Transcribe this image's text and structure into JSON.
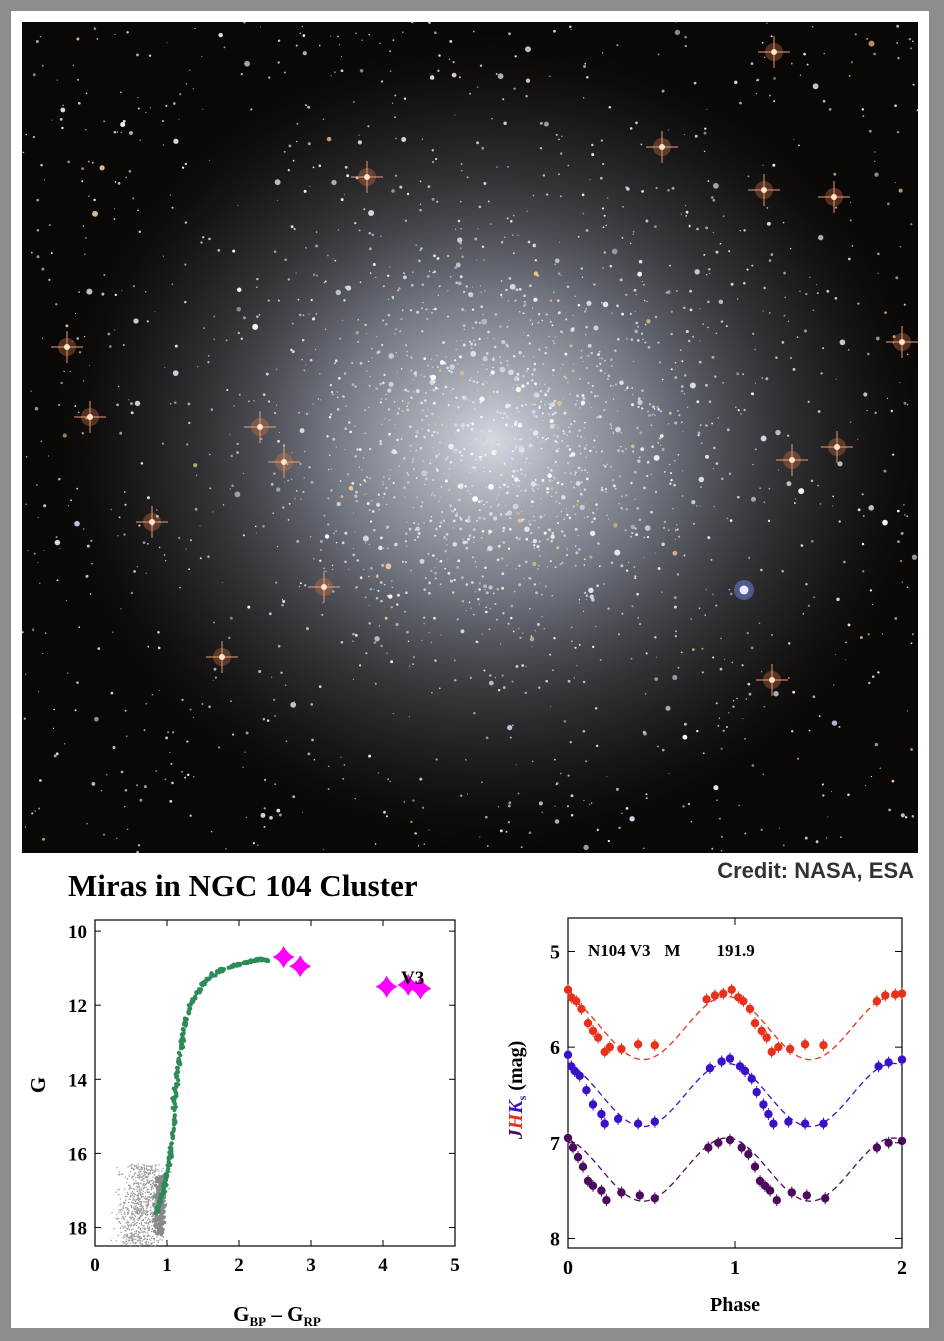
{
  "page": {
    "title": "Miras in NGC 104 Cluster",
    "credit": "Credit: NASA, ESA"
  },
  "colors": {
    "frame": "#8c8c8c",
    "cmd_members": "#2e8b57",
    "cmd_field": "#9a9a9a",
    "mira_marker": "#ff00ff",
    "J_band": "#e8301c",
    "H_band": "#3a10c8",
    "K_band": "#4b0a5e",
    "photo_background": "#0a0806"
  },
  "photo": {
    "icon": "globular-cluster-photo"
  },
  "chart_data": [
    {
      "type": "scatter",
      "xlabel_main": "G",
      "xlabel_sub1": "BP",
      "xlabel_sep": " – G",
      "xlabel_sub2": "RP",
      "ylabel": "G",
      "xlim": [
        0,
        5
      ],
      "ylim": [
        18.5,
        9.7
      ],
      "y_inverted": true,
      "xticks": [
        "0",
        "1",
        "2",
        "3",
        "4",
        "5"
      ],
      "yticks": [
        "10",
        "12",
        "14",
        "16",
        "18"
      ],
      "annotation": "V3",
      "series": [
        {
          "marker": "dot",
          "points": [
            [
              0.85,
              17.6
            ],
            [
              0.9,
              17.3
            ],
            [
              0.95,
              17.0
            ],
            [
              1.0,
              16.6
            ],
            [
              1.05,
              16.0
            ],
            [
              1.1,
              15.2
            ],
            [
              1.1,
              14.5
            ],
            [
              1.15,
              13.8
            ],
            [
              1.2,
              13.1
            ],
            [
              1.25,
              12.5
            ],
            [
              1.35,
              11.9
            ],
            [
              1.5,
              11.4
            ],
            [
              1.7,
              11.1
            ],
            [
              1.9,
              10.95
            ],
            [
              2.1,
              10.85
            ],
            [
              2.3,
              10.75
            ],
            [
              2.4,
              10.8
            ]
          ]
        },
        {
          "marker": "star",
          "points": [
            [
              2.62,
              10.7
            ],
            [
              2.85,
              10.95
            ],
            [
              4.05,
              11.5
            ],
            [
              4.35,
              11.45
            ],
            [
              4.52,
              11.55
            ]
          ]
        }
      ]
    },
    {
      "type": "scatter",
      "label_name": "N104 V3",
      "label_class": "M",
      "label_period": "191.9",
      "xlabel": "Phase",
      "ylabel_J": "J",
      "ylabel_H": "H",
      "ylabel_K": "K",
      "ylabel_sub": "s",
      "ylabel_unit": " (mag)",
      "xlim": [
        0,
        2
      ],
      "ylim": [
        8.1,
        4.65
      ],
      "y_inverted": true,
      "xticks": [
        "0",
        "1",
        "2"
      ],
      "yticks": [
        "5",
        "6",
        "7",
        "8"
      ],
      "series": [
        {
          "band": "J",
          "mean": 5.8,
          "amplitude": 0.33,
          "points": [
            [
              0.0,
              5.4
            ],
            [
              0.02,
              5.48
            ],
            [
              0.05,
              5.52
            ],
            [
              0.08,
              5.6
            ],
            [
              0.12,
              5.75
            ],
            [
              0.15,
              5.83
            ],
            [
              0.18,
              5.9
            ],
            [
              0.22,
              6.05
            ],
            [
              0.25,
              6.0
            ],
            [
              0.32,
              6.02
            ],
            [
              0.42,
              5.97
            ],
            [
              0.52,
              5.98
            ],
            [
              0.83,
              5.5
            ],
            [
              0.88,
              5.46
            ],
            [
              0.93,
              5.44
            ],
            [
              0.98,
              5.4
            ],
            [
              1.02,
              5.48
            ],
            [
              1.05,
              5.52
            ],
            [
              1.09,
              5.6
            ],
            [
              1.12,
              5.75
            ],
            [
              1.16,
              5.83
            ],
            [
              1.19,
              5.9
            ],
            [
              1.22,
              6.05
            ],
            [
              1.26,
              6.0
            ],
            [
              1.33,
              6.02
            ],
            [
              1.42,
              5.97
            ],
            [
              1.53,
              5.98
            ],
            [
              1.85,
              5.52
            ],
            [
              1.9,
              5.46
            ],
            [
              1.96,
              5.45
            ],
            [
              2.0,
              5.44
            ]
          ]
        },
        {
          "band": "H",
          "mean": 6.5,
          "amplitude": 0.33,
          "points": [
            [
              0.0,
              6.08
            ],
            [
              0.02,
              6.2
            ],
            [
              0.04,
              6.25
            ],
            [
              0.07,
              6.3
            ],
            [
              0.11,
              6.45
            ],
            [
              0.15,
              6.6
            ],
            [
              0.2,
              6.7
            ],
            [
              0.22,
              6.8
            ],
            [
              0.3,
              6.75
            ],
            [
              0.42,
              6.8
            ],
            [
              0.52,
              6.78
            ],
            [
              0.85,
              6.22
            ],
            [
              0.92,
              6.15
            ],
            [
              0.97,
              6.12
            ],
            [
              1.03,
              6.2
            ],
            [
              1.06,
              6.25
            ],
            [
              1.1,
              6.33
            ],
            [
              1.13,
              6.47
            ],
            [
              1.17,
              6.6
            ],
            [
              1.2,
              6.7
            ],
            [
              1.23,
              6.8
            ],
            [
              1.32,
              6.78
            ],
            [
              1.42,
              6.8
            ],
            [
              1.53,
              6.8
            ],
            [
              1.86,
              6.2
            ],
            [
              1.92,
              6.16
            ],
            [
              2.0,
              6.13
            ]
          ]
        },
        {
          "band": "Ks",
          "mean": 7.28,
          "amplitude": 0.33,
          "points": [
            [
              0.0,
              6.95
            ],
            [
              0.03,
              7.05
            ],
            [
              0.06,
              7.15
            ],
            [
              0.09,
              7.25
            ],
            [
              0.12,
              7.4
            ],
            [
              0.15,
              7.45
            ],
            [
              0.2,
              7.5
            ],
            [
              0.23,
              7.6
            ],
            [
              0.32,
              7.52
            ],
            [
              0.43,
              7.55
            ],
            [
              0.52,
              7.58
            ],
            [
              0.84,
              7.05
            ],
            [
              0.9,
              7.0
            ],
            [
              0.97,
              6.97
            ],
            [
              1.04,
              7.05
            ],
            [
              1.08,
              7.12
            ],
            [
              1.12,
              7.25
            ],
            [
              1.15,
              7.4
            ],
            [
              1.18,
              7.45
            ],
            [
              1.21,
              7.5
            ],
            [
              1.25,
              7.6
            ],
            [
              1.34,
              7.52
            ],
            [
              1.43,
              7.55
            ],
            [
              1.54,
              7.58
            ],
            [
              1.85,
              7.05
            ],
            [
              1.92,
              7.0
            ],
            [
              2.0,
              6.98
            ]
          ]
        }
      ]
    }
  ]
}
